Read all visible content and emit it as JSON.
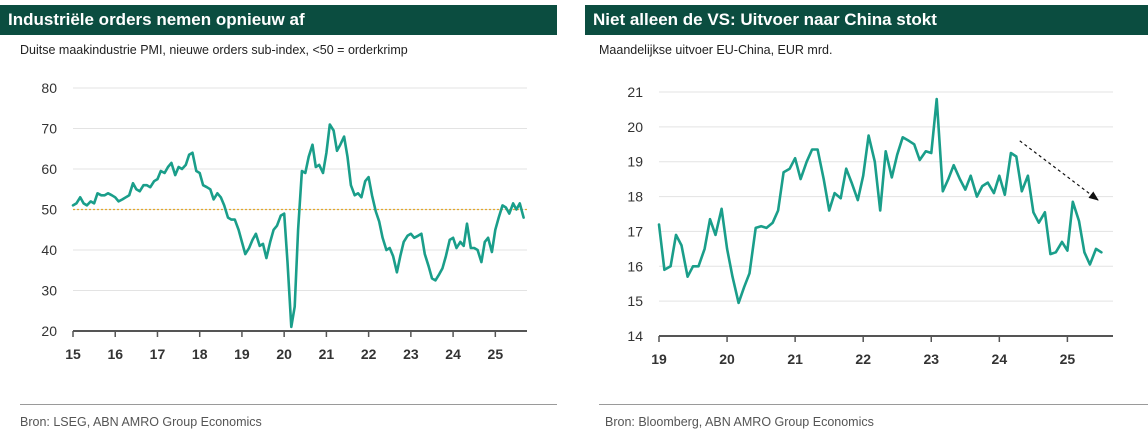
{
  "colors": {
    "title_bg": "#0b4d40",
    "series": "#1a9e8a",
    "reference": "#e3a82b",
    "axis": "#555555",
    "grid": "#e3e3e3"
  },
  "left": {
    "title": "Industriële orders nemen opnieuw af",
    "subtitle": "Duitse maakindustrie PMI, nieuwe orders sub-index, <50 = orderkrimp",
    "source": "Bron: LSEG, ABN AMRO Group Economics"
  },
  "right": {
    "title": "Niet alleen de VS: Uitvoer naar China stokt",
    "subtitle": "Maandelijkse uitvoer EU-China, EUR mrd.",
    "source": "Bron: Bloomberg, ABN AMRO Group Economics"
  },
  "chart_data": [
    {
      "type": "line",
      "title": "Industriële orders nemen opnieuw af",
      "subtitle": "Duitse maakindustrie PMI, nieuwe orders sub-index, <50 = orderkrimp",
      "xlabel": "",
      "ylabel": "",
      "xlim": [
        15,
        25.75
      ],
      "ylim": [
        20,
        80
      ],
      "x_ticks": [
        15,
        16,
        17,
        18,
        19,
        20,
        21,
        22,
        23,
        24,
        25
      ],
      "x_tick_labels": [
        "15",
        "16",
        "17",
        "18",
        "19",
        "20",
        "21",
        "22",
        "23",
        "24",
        "25"
      ],
      "y_ticks": [
        20,
        30,
        40,
        50,
        60,
        70,
        80
      ],
      "y_tick_labels": [
        "20",
        "30",
        "40",
        "50",
        "60",
        "70",
        "80"
      ],
      "grid": "horizontal",
      "reference_line": {
        "y": 50,
        "style": "dotted"
      },
      "series": [
        {
          "name": "PMI nieuwe orders",
          "x": [
            15.0,
            15.08,
            15.17,
            15.25,
            15.33,
            15.42,
            15.5,
            15.58,
            15.67,
            15.75,
            15.83,
            15.92,
            16.0,
            16.08,
            16.17,
            16.25,
            16.33,
            16.42,
            16.5,
            16.58,
            16.67,
            16.75,
            16.83,
            16.92,
            17.0,
            17.08,
            17.17,
            17.25,
            17.33,
            17.42,
            17.5,
            17.58,
            17.67,
            17.75,
            17.83,
            17.92,
            18.0,
            18.08,
            18.17,
            18.25,
            18.33,
            18.42,
            18.5,
            18.58,
            18.67,
            18.75,
            18.83,
            18.92,
            19.0,
            19.08,
            19.17,
            19.25,
            19.33,
            19.42,
            19.5,
            19.58,
            19.67,
            19.75,
            19.83,
            19.92,
            20.0,
            20.08,
            20.17,
            20.25,
            20.33,
            20.42,
            20.5,
            20.58,
            20.67,
            20.75,
            20.83,
            20.92,
            21.0,
            21.08,
            21.17,
            21.25,
            21.33,
            21.42,
            21.5,
            21.58,
            21.67,
            21.75,
            21.83,
            21.92,
            22.0,
            22.08,
            22.17,
            22.25,
            22.33,
            22.42,
            22.5,
            22.58,
            22.67,
            22.75,
            22.83,
            22.92,
            23.0,
            23.08,
            23.17,
            23.25,
            23.33,
            23.42,
            23.5,
            23.58,
            23.67,
            23.75,
            23.83,
            23.92,
            24.0,
            24.08,
            24.17,
            24.25,
            24.33,
            24.42,
            24.5,
            24.58,
            24.67,
            24.75,
            24.83,
            24.92,
            25.0,
            25.08,
            25.17,
            25.25,
            25.33,
            25.42,
            25.5,
            25.58,
            25.67
          ],
          "y": [
            51.0,
            51.5,
            53.0,
            51.5,
            51.0,
            52.0,
            51.5,
            54.0,
            53.5,
            53.5,
            54.0,
            53.5,
            53.0,
            52.0,
            52.5,
            53.0,
            53.5,
            56.5,
            55.0,
            54.5,
            56.0,
            56.0,
            55.5,
            57.0,
            57.5,
            59.5,
            59.0,
            60.5,
            61.5,
            58.5,
            60.5,
            60.0,
            61.0,
            63.5,
            64.0,
            59.5,
            59.0,
            56.0,
            55.5,
            55.0,
            52.5,
            54.0,
            53.0,
            51.0,
            48.0,
            47.5,
            47.5,
            45.0,
            42.0,
            39.0,
            40.5,
            42.5,
            44.0,
            41.0,
            41.5,
            38.0,
            42.0,
            45.0,
            46.0,
            48.5,
            49.0,
            37.0,
            21.0,
            26.0,
            45.0,
            59.5,
            59.0,
            63.0,
            66.0,
            60.5,
            61.0,
            59.0,
            64.0,
            71.0,
            69.5,
            64.5,
            66.0,
            68.0,
            63.0,
            56.0,
            53.5,
            54.0,
            53.0,
            57.0,
            58.0,
            53.5,
            49.5,
            47.0,
            43.0,
            40.0,
            40.5,
            38.5,
            34.5,
            38.5,
            42.0,
            43.5,
            44.0,
            43.0,
            43.5,
            44.0,
            39.0,
            36.0,
            33.0,
            32.5,
            34.0,
            35.5,
            38.5,
            42.5,
            43.0,
            40.5,
            42.0,
            41.0,
            46.5,
            40.5,
            40.5,
            40.0,
            37.0,
            42.0,
            43.0,
            39.5,
            45.0,
            48.0,
            51.0,
            50.5,
            49.0,
            51.5,
            50.0,
            51.5,
            48.0
          ]
        }
      ]
    },
    {
      "type": "line",
      "title": "Niet alleen de VS: Uitvoer naar China stokt",
      "subtitle": "Maandelijkse uitvoer EU-China, EUR mrd.",
      "xlabel": "",
      "ylabel": "",
      "xlim": [
        19,
        25.67
      ],
      "ylim": [
        14,
        21
      ],
      "x_ticks": [
        19,
        20,
        21,
        22,
        23,
        24,
        25
      ],
      "x_tick_labels": [
        "19",
        "20",
        "21",
        "22",
        "23",
        "24",
        "25"
      ],
      "y_ticks": [
        14,
        15,
        16,
        17,
        18,
        19,
        20,
        21
      ],
      "y_tick_labels": [
        "14",
        "15",
        "16",
        "17",
        "18",
        "19",
        "20",
        "21"
      ],
      "grid": "horizontal",
      "annotation": {
        "type": "arrow",
        "direction": "down-right",
        "x_from": 24.3,
        "y_from": 19.6,
        "x_to": 25.45,
        "y_to": 17.9
      },
      "series": [
        {
          "name": "Uitvoer EU-China",
          "x": [
            19.0,
            19.08,
            19.17,
            19.25,
            19.33,
            19.42,
            19.5,
            19.58,
            19.67,
            19.75,
            19.83,
            19.92,
            20.0,
            20.08,
            20.17,
            20.25,
            20.33,
            20.42,
            20.5,
            20.58,
            20.67,
            20.75,
            20.83,
            20.92,
            21.0,
            21.08,
            21.17,
            21.25,
            21.33,
            21.42,
            21.5,
            21.58,
            21.67,
            21.75,
            21.83,
            21.92,
            22.0,
            22.08,
            22.17,
            22.25,
            22.33,
            22.42,
            22.5,
            22.58,
            22.67,
            22.75,
            22.83,
            22.92,
            23.0,
            23.08,
            23.17,
            23.25,
            23.33,
            23.42,
            23.5,
            23.58,
            23.67,
            23.75,
            23.83,
            23.92,
            24.0,
            24.08,
            24.17,
            24.25,
            24.33,
            24.42,
            24.5,
            24.58,
            24.67,
            24.75,
            24.83,
            24.92,
            25.0,
            25.08,
            25.17,
            25.25,
            25.33,
            25.42,
            25.5
          ],
          "y": [
            17.2,
            15.9,
            16.0,
            16.9,
            16.6,
            15.7,
            16.0,
            16.0,
            16.5,
            17.35,
            16.9,
            17.65,
            16.5,
            15.7,
            14.95,
            15.4,
            15.8,
            17.1,
            17.15,
            17.1,
            17.25,
            17.6,
            18.7,
            18.8,
            19.1,
            18.5,
            19.0,
            19.35,
            19.35,
            18.5,
            17.6,
            18.1,
            17.95,
            18.8,
            18.4,
            17.9,
            18.6,
            19.75,
            19.0,
            17.6,
            19.3,
            18.55,
            19.2,
            19.7,
            19.6,
            19.5,
            19.05,
            19.3,
            19.25,
            20.8,
            18.15,
            18.5,
            18.9,
            18.5,
            18.2,
            18.6,
            18.0,
            18.3,
            18.4,
            18.1,
            18.6,
            18.05,
            19.25,
            19.15,
            18.15,
            18.6,
            17.55,
            17.25,
            17.55,
            16.35,
            16.4,
            16.7,
            16.45,
            17.85,
            17.3,
            16.4,
            16.05,
            16.5,
            16.4
          ]
        }
      ]
    }
  ]
}
